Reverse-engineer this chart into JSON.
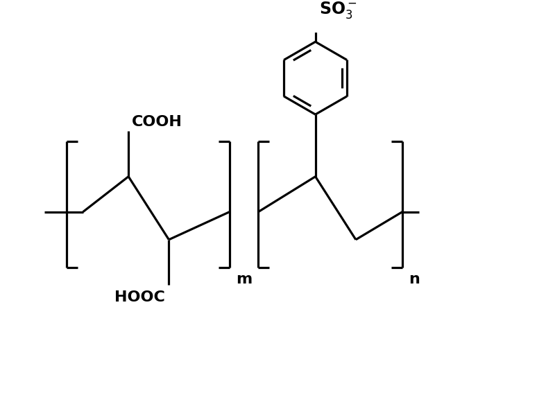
{
  "fig_width": 8.0,
  "fig_height": 5.67,
  "dpi": 100,
  "lw": 2.3,
  "color": "black",
  "font_size_labels": 16,
  "background": "white",
  "xlim": [
    0,
    10
  ],
  "ylim": [
    0,
    7.1
  ]
}
